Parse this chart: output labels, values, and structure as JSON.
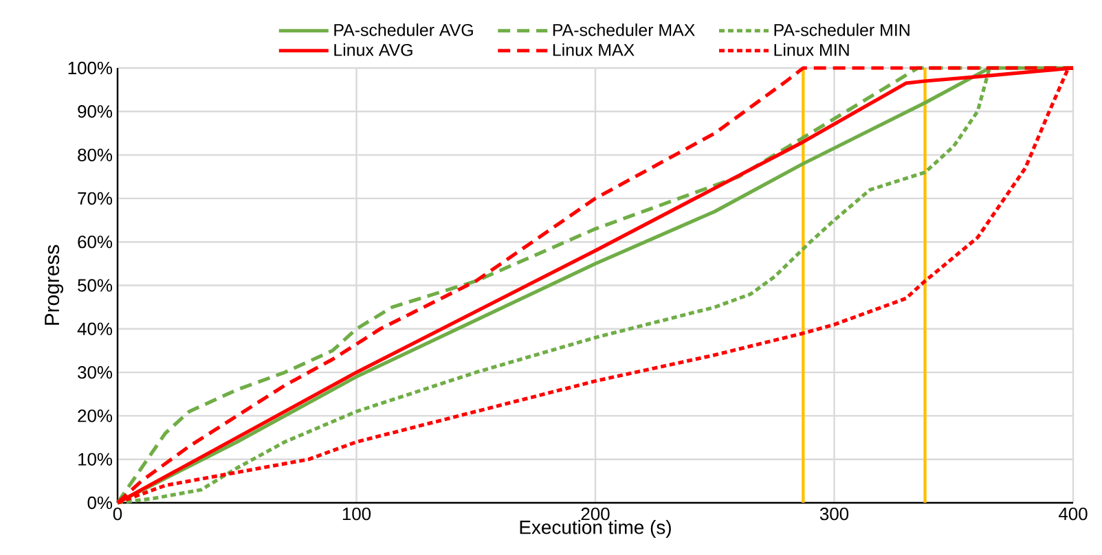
{
  "chart_data": {
    "type": "line",
    "xlabel": "Execution time (s)",
    "ylabel": "Progress",
    "xlim": [
      0,
      400
    ],
    "xticks": [
      0,
      100,
      200,
      300,
      400
    ],
    "ylim": [
      0,
      100
    ],
    "yticks": [
      {
        "value": 0,
        "label": "0%"
      },
      {
        "value": 10,
        "label": "10%"
      },
      {
        "value": 20,
        "label": "20%"
      },
      {
        "value": 30,
        "label": "30%"
      },
      {
        "value": 40,
        "label": "40%"
      },
      {
        "value": 50,
        "label": "50%"
      },
      {
        "value": 60,
        "label": "60%"
      },
      {
        "value": 70,
        "label": "70%"
      },
      {
        "value": 80,
        "label": "80%"
      },
      {
        "value": 90,
        "label": "90%"
      },
      {
        "value": 100,
        "label": "100%"
      }
    ],
    "grid": true,
    "legend": "top",
    "series": [
      {
        "name": "PA-scheduler AVG",
        "color": "#70ad47",
        "line_style": "solid",
        "x": [
          0,
          50,
          100,
          150,
          200,
          250,
          287,
          338,
          365,
          400
        ],
        "values": [
          0,
          14,
          29,
          42,
          55,
          67,
          78,
          92,
          100,
          100
        ]
      },
      {
        "name": "PA-scheduler MAX",
        "color": "#70ad47",
        "line_style": "dashed",
        "x": [
          0,
          10,
          20,
          30,
          50,
          70,
          90,
          100,
          115,
          150,
          200,
          260,
          290,
          320,
          335,
          400
        ],
        "values": [
          0,
          8,
          16,
          21,
          26,
          30,
          35,
          40,
          45,
          51,
          63,
          75,
          85,
          95,
          100,
          100
        ]
      },
      {
        "name": "PA-scheduler MIN",
        "color": "#70ad47",
        "line_style": "dotted",
        "x": [
          0,
          15,
          35,
          50,
          70,
          100,
          150,
          200,
          250,
          265,
          275,
          290,
          300,
          315,
          338,
          350,
          360,
          365
        ],
        "values": [
          0,
          1,
          3,
          8,
          14,
          21,
          30,
          38,
          45,
          48,
          52,
          60,
          65,
          72,
          76,
          82,
          90,
          100
        ]
      },
      {
        "name": "Linux AVG",
        "color": "#ff0000",
        "line_style": "solid",
        "x": [
          0,
          100,
          200,
          287,
          330,
          338,
          360,
          400
        ],
        "values": [
          0,
          30,
          58,
          83,
          96.5,
          97,
          98,
          100
        ]
      },
      {
        "name": "Linux MAX",
        "color": "#ff0000",
        "line_style": "dashed",
        "x": [
          0,
          10,
          30,
          50,
          70,
          90,
          110,
          150,
          200,
          250,
          280,
          287,
          400
        ],
        "values": [
          0,
          5,
          13,
          20,
          27,
          33,
          40,
          51,
          70,
          85,
          97,
          100,
          100
        ]
      },
      {
        "name": "Linux MIN",
        "color": "#ff0000",
        "line_style": "dotted",
        "x": [
          0,
          20,
          50,
          80,
          100,
          150,
          200,
          250,
          287,
          300,
          330,
          338,
          360,
          380,
          390,
          398
        ],
        "values": [
          0,
          4,
          7,
          10,
          14,
          21,
          28,
          34,
          39,
          41,
          47,
          51,
          61,
          77,
          90,
          100
        ]
      }
    ],
    "ref_lines": [
      {
        "axis": "x",
        "value": 287,
        "color": "#ffc000"
      },
      {
        "axis": "x",
        "value": 338,
        "color": "#ffc000"
      }
    ]
  }
}
